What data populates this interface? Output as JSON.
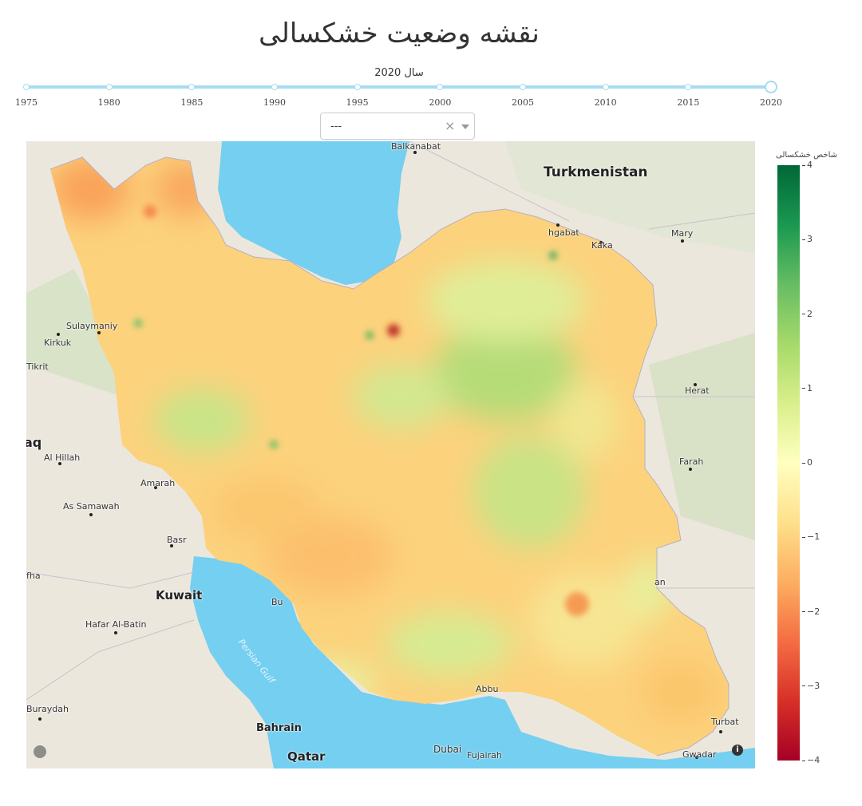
{
  "title": "نقشه وضعیت خشکسالی",
  "slider": {
    "current_label": "سال 2020",
    "years": [
      "1975",
      "1980",
      "1985",
      "1990",
      "1995",
      "2000",
      "2005",
      "2010",
      "2015",
      "2020"
    ],
    "selected_index": 9
  },
  "dropdown": {
    "value": "---",
    "clear": "×"
  },
  "map": {
    "country_labels": {
      "turkmenistan": "Turkmenistan",
      "kuwait": "Kuwait",
      "bahrain": "Bahrain",
      "qatar": "Qatar"
    },
    "cities": {
      "balkanabat": "Balkanabat",
      "ashgabat": "hgabat",
      "kaka": "Kaka",
      "mary": "Mary",
      "sulaymaniyah": "Sulaymaniy",
      "kirkuk": "Kirkuk",
      "tikrit": "Tikrit",
      "iraq": "aq",
      "al_hillah": "Al Hillah",
      "amarah": "Amarah",
      "as_samawah": "As Samawah",
      "basra": "Basr",
      "hafar": "Hafar Al-Batin",
      "buraydah": "Buraydah",
      "bushehr": "Bu",
      "herat": "Herat",
      "farah": "Farah",
      "zahedan_partial": "an",
      "turbat": "Turbat",
      "gwadar": "Gwadar",
      "dubai": "Dubai",
      "fujairah": "Fujairah",
      "abu_dhabi_partial": "Abbu",
      "rafha": "fha"
    },
    "sea_label": "Persian Gulf",
    "info_icon": "info-icon",
    "logo_icon": "mapbox-logo-icon"
  },
  "colorbar": {
    "title": "شاخص خشکسالی",
    "ticks": [
      "4",
      "3",
      "2",
      "1",
      "0",
      "−1",
      "−2",
      "−3",
      "−4"
    ],
    "range": [
      -4,
      4
    ],
    "colors": [
      "#006837",
      "#1a9850",
      "#66bd63",
      "#a6d96a",
      "#d9ef8b",
      "#ffffbf",
      "#fee08b",
      "#fdae61",
      "#f46d43",
      "#d73027",
      "#a50026"
    ]
  }
}
